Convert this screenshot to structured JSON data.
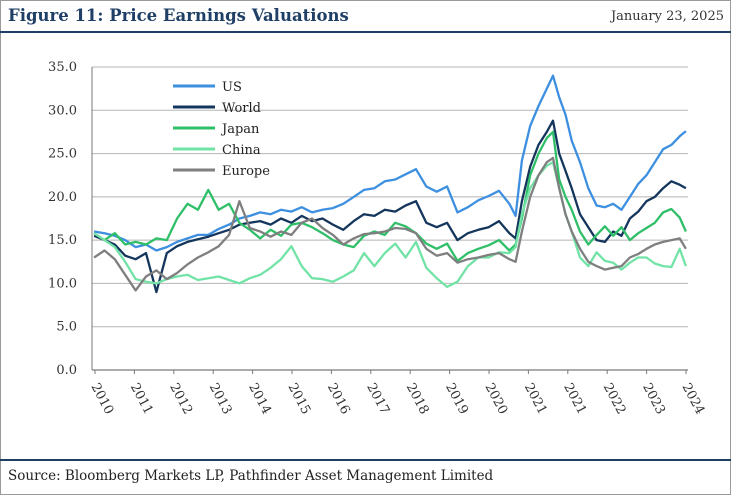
{
  "header": {
    "title": "Figure 11: Price Earnings Valuations",
    "date": "January 23, 2025"
  },
  "footer": {
    "source": "Source: Bloomberg Markets LP, Pathfinder Asset Management Limited"
  },
  "chart_data": {
    "type": "line",
    "title": "Figure 11: Price Earnings Valuations",
    "xlabel": "",
    "ylabel": "",
    "xlim": [
      2009.95,
      2024.3
    ],
    "ylim": [
      0,
      35
    ],
    "grid": true,
    "legend_position": "top-left",
    "y_ticks": [
      "0.0",
      "5.0",
      "10.0",
      "15.0",
      "20.0",
      "25.0",
      "30.0",
      "35.0"
    ],
    "x_ticks": [
      "2010",
      "2011",
      "2012",
      "2013",
      "2014",
      "2015",
      "2016",
      "2017",
      "2018",
      "2019",
      "2020",
      "2021",
      "2021",
      "2022",
      "2023",
      "2024"
    ],
    "series": [
      {
        "name": "US",
        "color": "#3d8fe0",
        "x": [
          2010.0,
          2010.25,
          2010.5,
          2010.75,
          2011.0,
          2011.25,
          2011.5,
          2011.75,
          2012.0,
          2012.25,
          2012.5,
          2012.75,
          2013.0,
          2013.25,
          2013.5,
          2013.75,
          2014.0,
          2014.25,
          2014.5,
          2014.75,
          2015.0,
          2015.25,
          2015.5,
          2015.75,
          2016.0,
          2016.25,
          2016.5,
          2016.75,
          2017.0,
          2017.25,
          2017.5,
          2017.75,
          2018.0,
          2018.25,
          2018.5,
          2018.75,
          2019.0,
          2019.25,
          2019.5,
          2019.75,
          2020.0,
          2020.15,
          2020.3,
          2020.5,
          2020.7,
          2020.9,
          2021.05,
          2021.2,
          2021.35,
          2021.5,
          2021.7,
          2021.9,
          2022.1,
          2022.3,
          2022.5,
          2022.7,
          2022.9,
          2023.1,
          2023.3,
          2023.5,
          2023.7,
          2023.9,
          2024.1,
          2024.25
        ],
        "values": [
          16.0,
          15.8,
          15.5,
          15.0,
          14.2,
          14.5,
          13.8,
          14.2,
          14.8,
          15.2,
          15.6,
          15.6,
          16.3,
          16.8,
          17.5,
          17.8,
          18.2,
          18.0,
          18.5,
          18.3,
          18.8,
          18.2,
          18.5,
          18.7,
          19.2,
          20.0,
          20.8,
          21.0,
          21.8,
          22.0,
          22.6,
          23.2,
          21.2,
          20.6,
          21.2,
          18.2,
          18.8,
          19.6,
          20.1,
          20.7,
          19.2,
          17.8,
          24.2,
          28.2,
          30.5,
          32.5,
          34.0,
          31.5,
          29.5,
          26.5,
          24.0,
          21.0,
          19.0,
          18.8,
          19.2,
          18.5,
          20.0,
          21.5,
          22.5,
          24.0,
          25.5,
          26.0,
          27.0,
          27.6
        ]
      },
      {
        "name": "World",
        "color": "#15365c",
        "x": [
          2010.0,
          2010.25,
          2010.5,
          2010.75,
          2011.0,
          2011.25,
          2011.5,
          2011.75,
          2012.0,
          2012.25,
          2012.5,
          2012.75,
          2013.0,
          2013.25,
          2013.5,
          2013.75,
          2014.0,
          2014.25,
          2014.5,
          2014.75,
          2015.0,
          2015.25,
          2015.5,
          2015.75,
          2016.0,
          2016.25,
          2016.5,
          2016.75,
          2017.0,
          2017.25,
          2017.5,
          2017.75,
          2018.0,
          2018.25,
          2018.5,
          2018.75,
          2019.0,
          2019.25,
          2019.5,
          2019.75,
          2020.0,
          2020.15,
          2020.3,
          2020.5,
          2020.7,
          2020.9,
          2021.05,
          2021.2,
          2021.35,
          2021.5,
          2021.7,
          2021.9,
          2022.1,
          2022.3,
          2022.5,
          2022.7,
          2022.9,
          2023.1,
          2023.3,
          2023.5,
          2023.7,
          2023.9,
          2024.1,
          2024.25
        ],
        "values": [
          15.5,
          15.0,
          14.5,
          13.2,
          12.8,
          13.5,
          9.0,
          13.5,
          14.3,
          14.8,
          15.1,
          15.4,
          15.8,
          16.2,
          16.8,
          17.0,
          17.2,
          16.8,
          17.5,
          17.0,
          17.8,
          17.2,
          17.5,
          16.8,
          16.2,
          17.2,
          18.0,
          17.8,
          18.5,
          18.3,
          19.0,
          19.5,
          17.0,
          16.5,
          17.0,
          15.0,
          15.8,
          16.2,
          16.5,
          17.2,
          15.8,
          15.2,
          19.5,
          23.5,
          26.0,
          27.5,
          28.8,
          25.0,
          23.0,
          21.0,
          18.0,
          16.5,
          15.0,
          14.8,
          16.0,
          15.5,
          17.5,
          18.3,
          19.5,
          20.0,
          21.0,
          21.8,
          21.4,
          21.0
        ]
      },
      {
        "name": "Japan",
        "color": "#2fbf68",
        "x": [
          2010.0,
          2010.25,
          2010.5,
          2010.75,
          2011.0,
          2011.25,
          2011.5,
          2011.75,
          2012.0,
          2012.25,
          2012.5,
          2012.75,
          2013.0,
          2013.25,
          2013.5,
          2013.75,
          2014.0,
          2014.25,
          2014.5,
          2014.75,
          2015.0,
          2015.25,
          2015.5,
          2015.75,
          2016.0,
          2016.25,
          2016.5,
          2016.75,
          2017.0,
          2017.25,
          2017.5,
          2017.75,
          2018.0,
          2018.25,
          2018.5,
          2018.75,
          2019.0,
          2019.25,
          2019.5,
          2019.75,
          2020.0,
          2020.15,
          2020.3,
          2020.5,
          2020.7,
          2020.9,
          2021.05,
          2021.2,
          2021.35,
          2021.5,
          2021.7,
          2021.9,
          2022.1,
          2022.3,
          2022.5,
          2022.7,
          2022.9,
          2023.1,
          2023.3,
          2023.5,
          2023.7,
          2023.9,
          2024.1,
          2024.25
        ],
        "values": [
          15.8,
          15.0,
          15.8,
          14.5,
          14.8,
          14.5,
          15.2,
          15.0,
          17.5,
          19.2,
          18.5,
          20.8,
          18.5,
          19.2,
          17.0,
          16.2,
          15.2,
          16.2,
          15.5,
          16.8,
          17.0,
          16.5,
          15.8,
          15.0,
          14.5,
          14.2,
          15.5,
          16.0,
          15.6,
          17.0,
          16.6,
          15.8,
          14.6,
          14.0,
          14.6,
          12.6,
          13.5,
          14.0,
          14.4,
          15.0,
          13.8,
          14.5,
          17.5,
          22.5,
          25.0,
          26.8,
          27.5,
          22.0,
          20.0,
          18.5,
          16.0,
          14.5,
          15.6,
          16.6,
          15.5,
          16.5,
          15.0,
          15.8,
          16.4,
          17.0,
          18.2,
          18.6,
          17.6,
          16.0
        ]
      },
      {
        "name": "China",
        "color": "#72e3a6",
        "x": [
          2010.0,
          2010.25,
          2010.5,
          2010.75,
          2011.0,
          2011.25,
          2011.5,
          2011.75,
          2012.0,
          2012.25,
          2012.5,
          2012.75,
          2013.0,
          2013.25,
          2013.5,
          2013.75,
          2014.0,
          2014.25,
          2014.5,
          2014.75,
          2015.0,
          2015.25,
          2015.5,
          2015.75,
          2016.0,
          2016.25,
          2016.5,
          2016.75,
          2017.0,
          2017.25,
          2017.5,
          2017.75,
          2018.0,
          2018.25,
          2018.5,
          2018.75,
          2019.0,
          2019.25,
          2019.5,
          2019.75,
          2020.0,
          2020.15,
          2020.3,
          2020.5,
          2020.7,
          2020.9,
          2021.05,
          2021.2,
          2021.35,
          2021.5,
          2021.7,
          2021.9,
          2022.1,
          2022.3,
          2022.5,
          2022.7,
          2022.9,
          2023.1,
          2023.3,
          2023.5,
          2023.7,
          2023.9,
          2024.1,
          2024.25
        ],
        "values": [
          15.8,
          15.0,
          14.2,
          12.5,
          10.5,
          10.2,
          10.0,
          10.5,
          10.8,
          11.0,
          10.4,
          10.6,
          10.8,
          10.4,
          10.0,
          10.6,
          11.0,
          11.8,
          12.8,
          14.3,
          12.0,
          10.6,
          10.5,
          10.2,
          10.8,
          11.5,
          13.5,
          12.0,
          13.5,
          14.6,
          13.0,
          14.8,
          11.8,
          10.6,
          9.6,
          10.2,
          12.0,
          13.0,
          13.0,
          13.6,
          13.5,
          14.2,
          18.0,
          21.0,
          22.5,
          23.6,
          24.0,
          21.0,
          18.0,
          16.0,
          13.0,
          12.0,
          13.6,
          12.6,
          12.4,
          11.6,
          12.4,
          13.0,
          13.0,
          12.3,
          12.0,
          11.9,
          14.0,
          12.0
        ]
      },
      {
        "name": "Europe",
        "color": "#7f7f7f",
        "x": [
          2010.0,
          2010.25,
          2010.5,
          2010.75,
          2011.0,
          2011.25,
          2011.5,
          2011.75,
          2012.0,
          2012.25,
          2012.5,
          2012.75,
          2013.0,
          2013.25,
          2013.5,
          2013.75,
          2014.0,
          2014.25,
          2014.5,
          2014.75,
          2015.0,
          2015.25,
          2015.5,
          2015.75,
          2016.0,
          2016.25,
          2016.5,
          2016.75,
          2017.0,
          2017.25,
          2017.5,
          2017.75,
          2018.0,
          2018.25,
          2018.5,
          2018.75,
          2019.0,
          2019.25,
          2019.5,
          2019.75,
          2020.0,
          2020.15,
          2020.3,
          2020.5,
          2020.7,
          2020.9,
          2021.05,
          2021.2,
          2021.35,
          2021.5,
          2021.7,
          2021.9,
          2022.1,
          2022.3,
          2022.5,
          2022.7,
          2022.9,
          2023.1,
          2023.3,
          2023.5,
          2023.7,
          2023.9,
          2024.1,
          2024.25
        ],
        "values": [
          13.0,
          13.8,
          12.8,
          11.0,
          9.2,
          10.8,
          11.5,
          10.5,
          11.2,
          12.2,
          13.0,
          13.6,
          14.3,
          15.6,
          19.5,
          16.4,
          16.0,
          15.4,
          16.0,
          15.6,
          17.0,
          17.5,
          16.4,
          15.6,
          14.5,
          15.2,
          15.7,
          15.8,
          16.0,
          16.4,
          16.3,
          15.8,
          14.0,
          13.2,
          13.5,
          12.4,
          12.8,
          13.0,
          13.3,
          13.5,
          12.8,
          12.5,
          16.0,
          20.0,
          22.5,
          24.0,
          24.5,
          21.0,
          18.0,
          16.0,
          14.0,
          12.5,
          12.0,
          11.6,
          11.8,
          12.0,
          13.0,
          13.4,
          14.0,
          14.5,
          14.8,
          15.0,
          15.2,
          14.0
        ]
      }
    ]
  }
}
